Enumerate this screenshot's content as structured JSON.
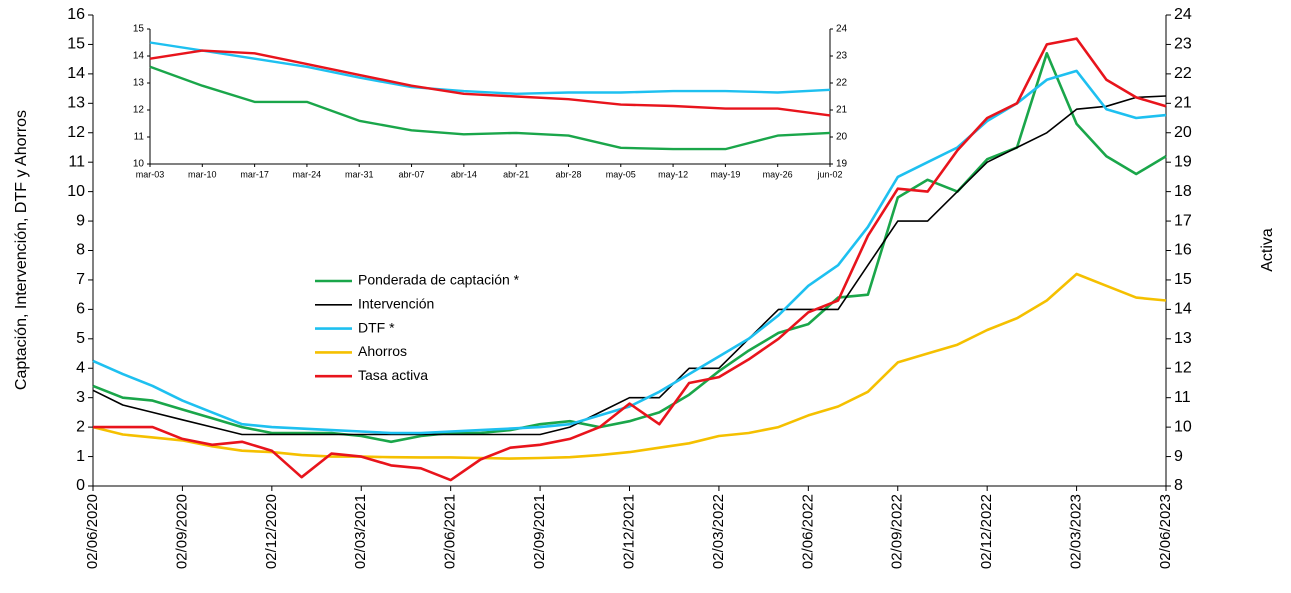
{
  "chart_data": [
    {
      "type": "line",
      "y_label": "Captación, Intervención,  DTF  y Ahorros",
      "y2_label": "Activa",
      "categories": [
        "02/06/2020",
        null,
        null,
        "02/09/2020",
        null,
        null,
        "02/12/2020",
        null,
        null,
        "02/03/2021",
        null,
        null,
        "02/06/2021",
        null,
        null,
        "02/09/2021",
        null,
        null,
        "02/12/2021",
        null,
        null,
        "02/03/2022",
        null,
        null,
        "02/06/2022",
        null,
        null,
        "02/09/2022",
        null,
        null,
        "02/12/2022",
        null,
        null,
        "02/03/2023",
        null,
        null,
        "02/06/2023"
      ],
      "ylim": [
        0,
        16
      ],
      "yticks": [
        0,
        1,
        2,
        3,
        4,
        5,
        6,
        7,
        8,
        9,
        10,
        11,
        12,
        13,
        14,
        15,
        16
      ],
      "y2lim": [
        8,
        24
      ],
      "y2ticks": [
        8,
        9,
        10,
        11,
        12,
        13,
        14,
        15,
        16,
        17,
        18,
        19,
        20,
        21,
        22,
        23,
        24
      ],
      "series": [
        {
          "name": "Ponderada de captación *",
          "color": "#1aa64a",
          "values": [
            3.4,
            3.0,
            2.9,
            2.6,
            2.3,
            2.0,
            1.8,
            1.8,
            1.8,
            1.7,
            1.5,
            1.7,
            1.8,
            1.8,
            1.9,
            2.1,
            2.2,
            2.0,
            2.2,
            2.5,
            3.1,
            3.9,
            4.6,
            5.2,
            5.5,
            6.4,
            6.5,
            9.8,
            10.4,
            10.0,
            11.1,
            11.5,
            14.7,
            12.3,
            11.2,
            10.6,
            11.2
          ]
        },
        {
          "name": "Intervención",
          "color": "#000000",
          "values": [
            3.25,
            2.75,
            2.5,
            2.25,
            2.0,
            1.75,
            1.75,
            1.75,
            1.75,
            1.75,
            1.75,
            1.75,
            1.75,
            1.75,
            1.75,
            1.75,
            2.0,
            2.5,
            3.0,
            3.0,
            4.0,
            4.0,
            5.0,
            6.0,
            6.0,
            6.0,
            7.5,
            9.0,
            9.0,
            10.0,
            11.0,
            11.5,
            12.0,
            12.8,
            12.9,
            13.2,
            13.25
          ]
        },
        {
          "name": "DTF *",
          "color": "#1ec0f0",
          "values": [
            4.25,
            3.8,
            3.4,
            2.9,
            2.5,
            2.1,
            2.0,
            1.95,
            1.9,
            1.85,
            1.8,
            1.8,
            1.85,
            1.9,
            1.95,
            2.0,
            2.1,
            2.4,
            2.7,
            3.2,
            3.8,
            4.4,
            5.0,
            5.8,
            6.8,
            7.5,
            8.8,
            10.5,
            11.0,
            11.5,
            12.4,
            13.0,
            13.8,
            14.1,
            12.8,
            12.5,
            12.6
          ]
        },
        {
          "name": "Ahorros",
          "color": "#f5c000",
          "values": [
            2.0,
            1.75,
            1.65,
            1.55,
            1.35,
            1.2,
            1.15,
            1.05,
            1.0,
            1.0,
            0.98,
            0.97,
            0.97,
            0.95,
            0.93,
            0.95,
            0.98,
            1.05,
            1.15,
            1.3,
            1.45,
            1.7,
            1.8,
            2.0,
            2.4,
            2.7,
            3.2,
            4.2,
            4.5,
            4.8,
            5.3,
            5.7,
            6.3,
            7.2,
            6.8,
            6.4,
            6.3
          ]
        },
        {
          "name": "Tasa activa",
          "color": "#e8141c",
          "axis": "y2",
          "values": [
            10.0,
            10.0,
            10.0,
            9.6,
            9.4,
            9.5,
            9.2,
            8.3,
            9.1,
            9.0,
            8.7,
            8.6,
            8.2,
            8.9,
            9.3,
            9.4,
            9.6,
            10.0,
            10.8,
            10.1,
            11.5,
            11.7,
            12.3,
            13.0,
            13.9,
            14.3,
            16.5,
            18.1,
            18.0,
            19.4,
            20.5,
            21.0,
            23.0,
            23.2,
            21.8,
            21.2,
            20.9
          ]
        }
      ]
    },
    {
      "type": "line",
      "categories": [
        "mar-03",
        "mar-10",
        "mar-17",
        "mar-24",
        "mar-31",
        "abr-07",
        "abr-14",
        "abr-21",
        "abr-28",
        "may-05",
        "may-12",
        "may-19",
        "may-26",
        "jun-02"
      ],
      "ylim": [
        10,
        15
      ],
      "yticks": [
        10,
        11,
        12,
        13,
        14,
        15
      ],
      "y2lim": [
        19,
        24
      ],
      "y2ticks": [
        19,
        20,
        21,
        22,
        23,
        24
      ],
      "series": [
        {
          "color": "#1aa64a",
          "values": [
            13.6,
            12.9,
            12.3,
            12.3,
            11.6,
            11.25,
            11.1,
            11.15,
            11.05,
            10.6,
            10.55,
            10.55,
            11.05,
            11.15
          ]
        },
        {
          "color": "#1ec0f0",
          "values": [
            14.5,
            14.2,
            13.9,
            13.6,
            13.2,
            12.85,
            12.7,
            12.6,
            12.65,
            12.65,
            12.7,
            12.7,
            12.65,
            12.75
          ]
        },
        {
          "color": "#e8141c",
          "axis": "y2",
          "values": [
            22.9,
            23.2,
            23.1,
            22.7,
            22.3,
            21.9,
            21.6,
            21.5,
            21.4,
            21.2,
            21.15,
            21.05,
            21.05,
            20.8
          ]
        }
      ]
    }
  ]
}
